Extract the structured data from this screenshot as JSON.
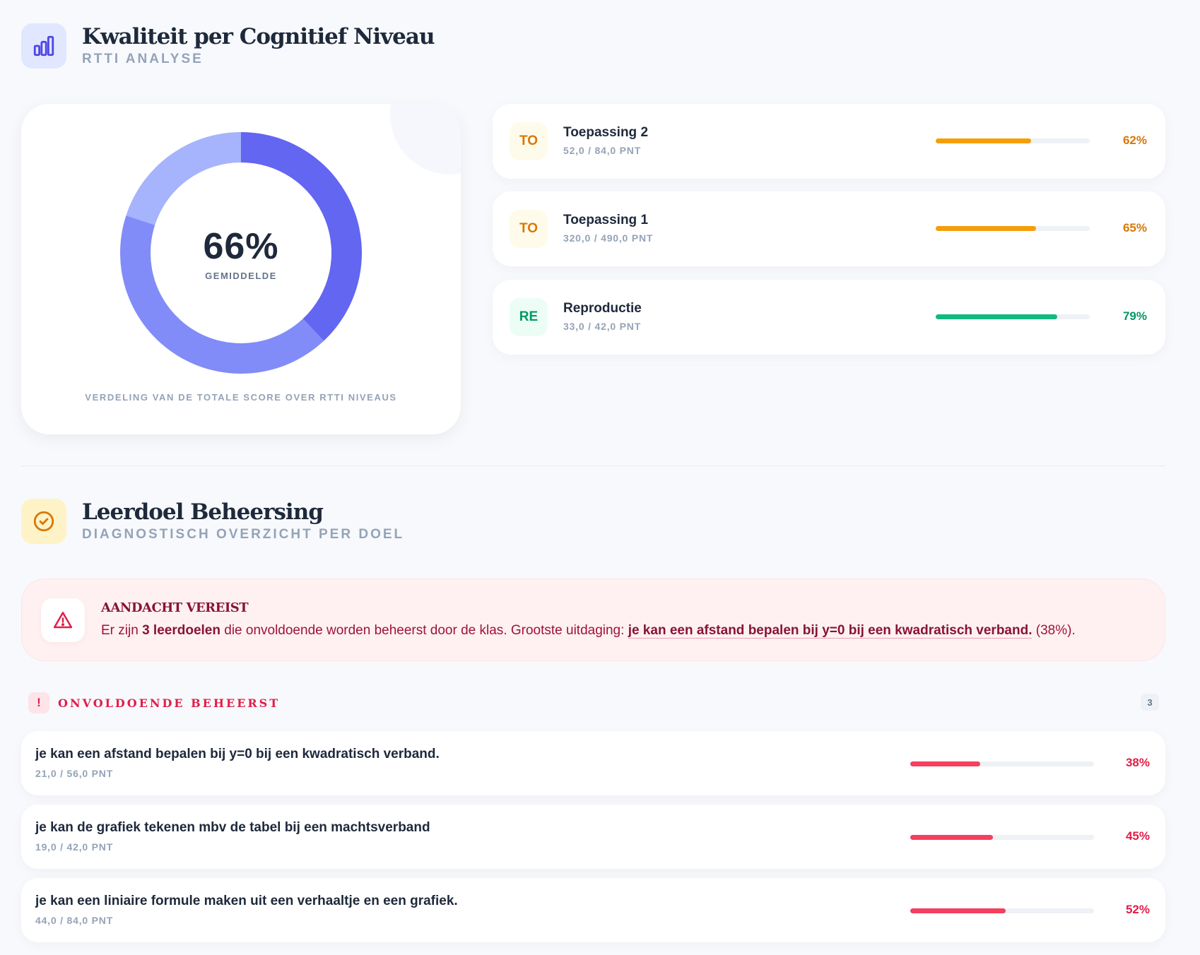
{
  "colors": {
    "indigo_dark": "#6366f1",
    "indigo_mid": "#818cf8",
    "indigo_light": "#a5b4fc",
    "amber": "#f59e0b",
    "amber_text": "#d97706",
    "green": "#10b981",
    "green_text": "#059669",
    "red": "#f43f5e",
    "red_text": "#e11d48"
  },
  "section1": {
    "title": "Kwaliteit per Cognitief Niveau",
    "subtitle": "RTTI ANALYSE",
    "icon": "bar-chart-icon"
  },
  "donut": {
    "center_value": "66%",
    "center_label": "GEMIDDELDE",
    "caption": "VERDELING VAN DE TOTALE SCORE OVER RTTI NIVEAUS"
  },
  "chart_data": {
    "type": "pie",
    "variant": "donut",
    "center_value": "66%",
    "center_label": "GEMIDDELDE",
    "caption": "VERDELING VAN DE TOTALE SCORE OVER RTTI NIVEAUS",
    "slices": [
      {
        "value": 0.38,
        "color": "#6366f1"
      },
      {
        "value": 0.42,
        "color": "#818cf8"
      },
      {
        "value": 0.2,
        "color": "#a5b4fc"
      }
    ]
  },
  "levels": [
    {
      "badge": "TO",
      "name": "Toepassing 2",
      "points": "52,0 / 84,0 PNT",
      "percent": "62%",
      "fraction": 0.62,
      "tone": "amber"
    },
    {
      "badge": "TO",
      "name": "Toepassing 1",
      "points": "320,0 / 490,0 PNT",
      "percent": "65%",
      "fraction": 0.65,
      "tone": "amber"
    },
    {
      "badge": "RE",
      "name": "Reproductie",
      "points": "33,0 / 42,0 PNT",
      "percent": "79%",
      "fraction": 0.79,
      "tone": "green"
    }
  ],
  "section2": {
    "title": "Leerdoel Beheersing",
    "subtitle": "DIAGNOSTISCH OVERZICHT PER DOEL",
    "icon": "check-circle-icon"
  },
  "alert": {
    "title": "AANDACHT VEREIST",
    "text_prefix": "Er zijn ",
    "count_text": "3 leerdoelen",
    "text_middle": " die onvoldoende worden beheerst door de klas. Grootste uitdaging: ",
    "goal": "je kan een afstand bepalen bij y=0 bij een kwadratisch verband.",
    "text_suffix": " (38%)."
  },
  "group": {
    "badge": "!",
    "label": "ONVOLDOENDE BEHEERST",
    "count": "3"
  },
  "goals": [
    {
      "name": "je kan een afstand bepalen bij y=0 bij een kwadratisch verband.",
      "points": "21,0 / 56,0 PNT",
      "percent": "38%",
      "fraction": 0.38
    },
    {
      "name": "je kan de grafiek tekenen mbv de tabel bij een machtsverband",
      "points": "19,0 / 42,0 PNT",
      "percent": "45%",
      "fraction": 0.45
    },
    {
      "name": "je kan een liniaire formule maken uit een verhaaltje en een grafiek.",
      "points": "44,0 / 84,0 PNT",
      "percent": "52%",
      "fraction": 0.52
    }
  ]
}
